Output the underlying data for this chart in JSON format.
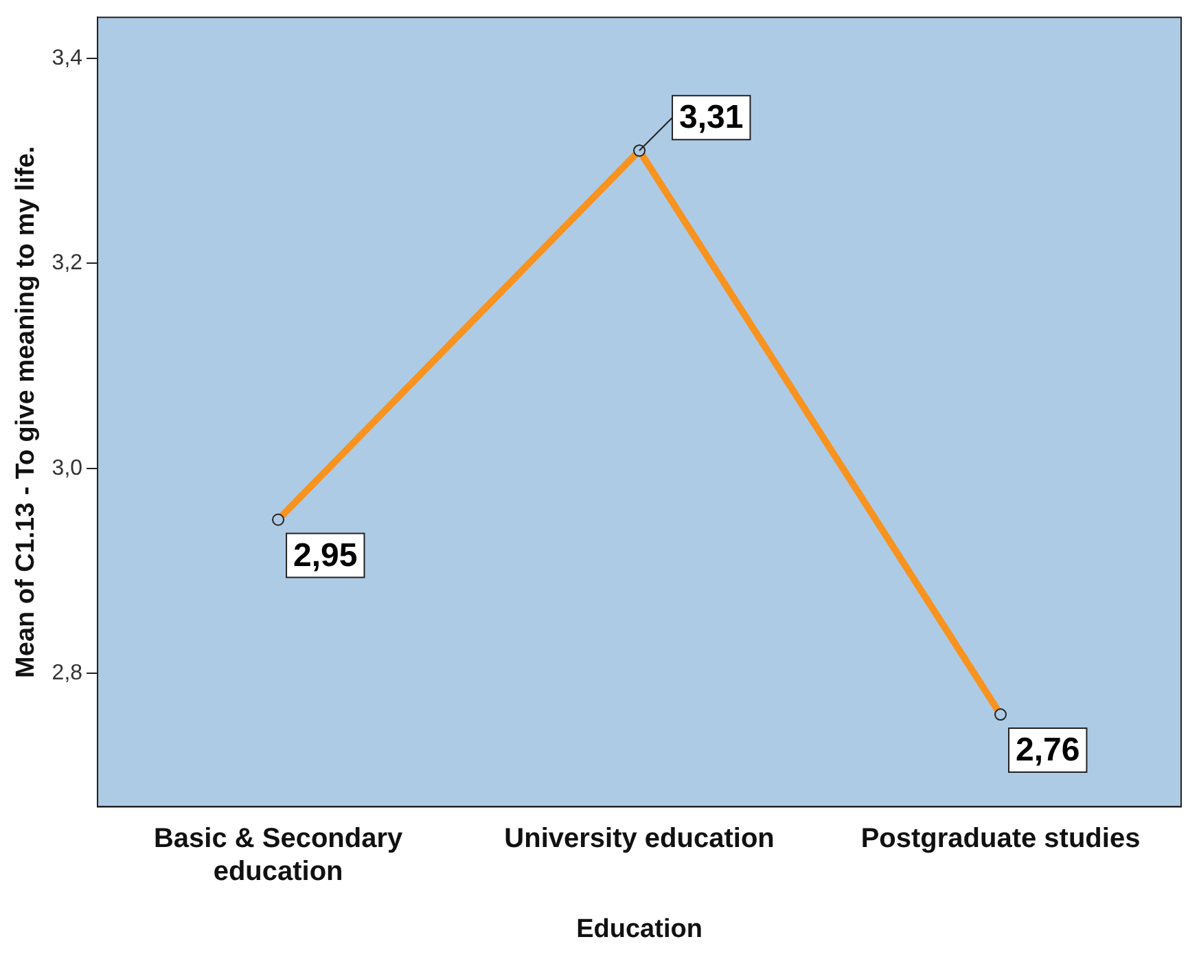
{
  "chart_data": {
    "type": "line",
    "xlabel": "Education",
    "ylabel": "Mean of C1.13 - To give meaning to my life.",
    "categories": [
      "Basic & Secondary education",
      "University education",
      "Postgraduate studies"
    ],
    "values": [
      2.95,
      3.31,
      2.76
    ],
    "value_labels": [
      "2,95",
      "3,31",
      "2,76"
    ],
    "color": "#f7931e",
    "marker": "circle",
    "ylim": [
      2.67,
      3.44
    ],
    "yticks": [
      {
        "value": 2.8,
        "label": "2,8"
      },
      {
        "value": 3.0,
        "label": "3,0"
      },
      {
        "value": 3.2,
        "label": "3,2"
      },
      {
        "value": 3.4,
        "label": "3,4"
      }
    ],
    "grid": false
  }
}
